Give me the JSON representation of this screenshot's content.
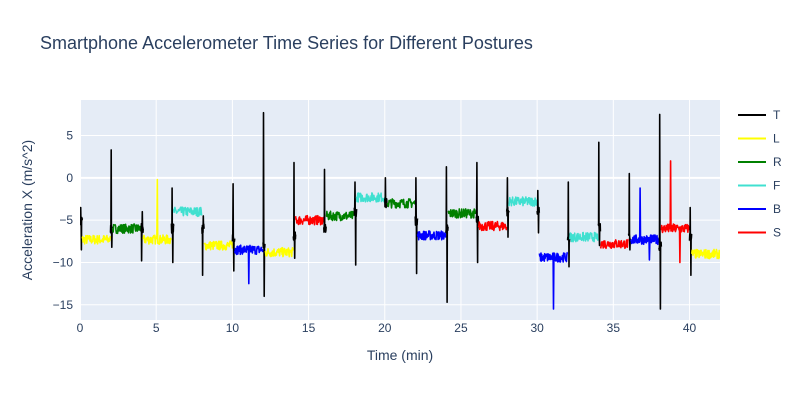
{
  "chart_data": {
    "type": "line",
    "title": "Smartphone Accelerometer Time Series for Different Postures",
    "xlabel": "Time (min)",
    "ylabel": "Acceleration X (m/s^2)",
    "xlim": [
      0,
      42
    ],
    "ylim": [
      -16.8,
      9.2
    ],
    "x_ticks": [
      0,
      5,
      10,
      15,
      20,
      25,
      30,
      35,
      40
    ],
    "y_ticks": [
      5,
      0,
      -5,
      -10,
      -15
    ],
    "grid": true,
    "legend_position": "top-right",
    "series": [
      {
        "name": "T",
        "color": "#000000"
      },
      {
        "name": "L",
        "color": "#ffff00"
      },
      {
        "name": "R",
        "color": "#008000"
      },
      {
        "name": "F",
        "color": "#40e0d0"
      },
      {
        "name": "B",
        "color": "#0000ff"
      },
      {
        "name": "S",
        "color": "#ff0000"
      }
    ],
    "segments": [
      {
        "series": "T",
        "start": 0.0,
        "end": 0.15,
        "level": -5.0,
        "spikes": [
          -3.5,
          -8.5
        ]
      },
      {
        "series": "L",
        "start": 0.15,
        "end": 2.0,
        "level": -7.3
      },
      {
        "series": "T",
        "start": 2.0,
        "end": 2.15,
        "level": -6.0,
        "spikes": [
          3.3,
          -8.2
        ]
      },
      {
        "series": "R",
        "start": 2.15,
        "end": 4.0,
        "level": -6.0
      },
      {
        "series": "T",
        "start": 4.0,
        "end": 4.15,
        "level": -6.0,
        "spikes": [
          -9.8,
          -4.0
        ]
      },
      {
        "series": "L",
        "start": 4.15,
        "end": 6.0,
        "level": -7.3,
        "spikes": [
          -0.2
        ]
      },
      {
        "series": "T",
        "start": 6.0,
        "end": 6.15,
        "level": -6.0,
        "spikes": [
          -1.2,
          -10.0
        ]
      },
      {
        "series": "F",
        "start": 6.15,
        "end": 8.0,
        "level": -4.0
      },
      {
        "series": "T",
        "start": 8.0,
        "end": 8.15,
        "level": -6.0,
        "spikes": [
          -11.5,
          -4.5
        ]
      },
      {
        "series": "L",
        "start": 8.15,
        "end": 10.0,
        "level": -8.0
      },
      {
        "series": "T",
        "start": 10.0,
        "end": 10.15,
        "level": -7.0,
        "spikes": [
          -0.7,
          -11.0
        ]
      },
      {
        "series": "B",
        "start": 10.15,
        "end": 12.0,
        "level": -8.5,
        "spikes": [
          -12.5
        ]
      },
      {
        "series": "T",
        "start": 12.0,
        "end": 12.15,
        "level": -8.0,
        "spikes": [
          7.7,
          -14.0
        ]
      },
      {
        "series": "L",
        "start": 12.15,
        "end": 14.0,
        "level": -8.8
      },
      {
        "series": "T",
        "start": 14.0,
        "end": 14.15,
        "level": -7.0,
        "spikes": [
          1.8,
          -9.5
        ]
      },
      {
        "series": "S",
        "start": 14.15,
        "end": 16.0,
        "level": -5.0
      },
      {
        "series": "T",
        "start": 16.0,
        "end": 16.15,
        "level": -6.0,
        "spikes": [
          1.0,
          -6.0
        ]
      },
      {
        "series": "R",
        "start": 16.15,
        "end": 18.0,
        "level": -4.5
      },
      {
        "series": "T",
        "start": 18.0,
        "end": 18.15,
        "level": -4.0,
        "spikes": [
          -0.5,
          -10.3
        ]
      },
      {
        "series": "F",
        "start": 18.15,
        "end": 20.0,
        "level": -2.3
      },
      {
        "series": "T",
        "start": 20.0,
        "end": 20.15,
        "level": -3.0,
        "spikes": [
          0.0,
          -3.5
        ]
      },
      {
        "series": "R",
        "start": 20.15,
        "end": 22.0,
        "level": -3.0
      },
      {
        "series": "T",
        "start": 22.0,
        "end": 22.15,
        "level": -5.0,
        "spikes": [
          0.0,
          -11.3
        ]
      },
      {
        "series": "B",
        "start": 22.15,
        "end": 24.0,
        "level": -6.8
      },
      {
        "series": "T",
        "start": 24.0,
        "end": 24.15,
        "level": -6.0,
        "spikes": [
          1.3,
          -14.7
        ]
      },
      {
        "series": "R",
        "start": 24.15,
        "end": 26.0,
        "level": -4.2
      },
      {
        "series": "T",
        "start": 26.0,
        "end": 26.15,
        "level": -5.0,
        "spikes": [
          1.8,
          -10.0
        ]
      },
      {
        "series": "S",
        "start": 26.15,
        "end": 28.0,
        "level": -5.7
      },
      {
        "series": "T",
        "start": 28.0,
        "end": 28.15,
        "level": -4.0,
        "spikes": [
          0.0,
          -7.0
        ]
      },
      {
        "series": "F",
        "start": 28.15,
        "end": 30.0,
        "level": -2.8
      },
      {
        "series": "T",
        "start": 30.0,
        "end": 30.15,
        "level": -4.0,
        "spikes": [
          -1.5,
          -6.5
        ]
      },
      {
        "series": "B",
        "start": 30.15,
        "end": 32.0,
        "level": -9.4,
        "spikes": [
          -15.5
        ]
      },
      {
        "series": "T",
        "start": 32.0,
        "end": 32.15,
        "level": -7.0,
        "spikes": [
          -0.5,
          -10.5
        ]
      },
      {
        "series": "F",
        "start": 32.15,
        "end": 34.0,
        "level": -7.0
      },
      {
        "series": "T",
        "start": 34.0,
        "end": 34.15,
        "level": -6.0,
        "spikes": [
          4.2,
          -8.0
        ]
      },
      {
        "series": "S",
        "start": 34.15,
        "end": 36.0,
        "level": -7.8
      },
      {
        "series": "T",
        "start": 36.0,
        "end": 36.15,
        "level": -7.0,
        "spikes": [
          0.5,
          -8.5
        ]
      },
      {
        "series": "B",
        "start": 36.15,
        "end": 38.0,
        "level": -7.3,
        "spikes": [
          -1.2,
          -9.7
        ]
      },
      {
        "series": "T",
        "start": 38.0,
        "end": 38.15,
        "level": -8.0,
        "spikes": [
          7.5,
          -15.5
        ]
      },
      {
        "series": "S",
        "start": 38.15,
        "end": 40.0,
        "level": -6.0,
        "spikes": [
          2.0,
          -10.0
        ]
      },
      {
        "series": "T",
        "start": 40.0,
        "end": 40.15,
        "level": -7.0,
        "spikes": [
          -3.5,
          -11.5
        ]
      },
      {
        "series": "L",
        "start": 40.15,
        "end": 42.0,
        "level": -9.0
      }
    ]
  }
}
